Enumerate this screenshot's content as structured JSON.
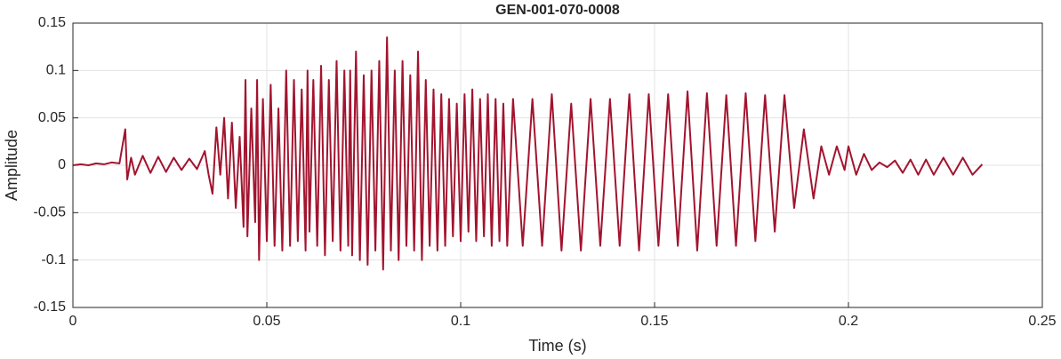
{
  "chart_data": {
    "type": "line",
    "title": "GEN-001-070-0008",
    "xlabel": "Time (s)",
    "ylabel": "Amplitude",
    "xlim": [
      0,
      0.25
    ],
    "xticks": [
      0,
      0.05,
      0.1,
      0.15,
      0.2,
      0.25
    ],
    "ylim": [
      -0.15,
      0.15
    ],
    "yticks": [
      -0.15,
      -0.1,
      -0.05,
      0,
      0.05,
      0.1,
      0.15
    ],
    "grid": true,
    "x": [
      0,
      0.002,
      0.004,
      0.006,
      0.008,
      0.01,
      0.012,
      0.0135,
      0.014,
      0.015,
      0.016,
      0.018,
      0.02,
      0.022,
      0.024,
      0.026,
      0.028,
      0.03,
      0.032,
      0.034,
      0.035,
      0.036,
      0.037,
      0.038,
      0.039,
      0.04,
      0.041,
      0.042,
      0.043,
      0.044,
      0.0445,
      0.045,
      0.046,
      0.047,
      0.0475,
      0.048,
      0.049,
      0.05,
      0.051,
      0.052,
      0.053,
      0.054,
      0.055,
      0.056,
      0.057,
      0.058,
      0.059,
      0.06,
      0.0605,
      0.061,
      0.062,
      0.063,
      0.064,
      0.065,
      0.066,
      0.067,
      0.068,
      0.069,
      0.07,
      0.071,
      0.0715,
      0.072,
      0.073,
      0.074,
      0.075,
      0.076,
      0.077,
      0.078,
      0.079,
      0.08,
      0.081,
      0.082,
      0.083,
      0.084,
      0.085,
      0.086,
      0.087,
      0.088,
      0.089,
      0.09,
      0.091,
      0.092,
      0.093,
      0.094,
      0.095,
      0.096,
      0.097,
      0.098,
      0.099,
      0.1,
      0.101,
      0.102,
      0.103,
      0.104,
      0.105,
      0.106,
      0.107,
      0.108,
      0.109,
      0.11,
      0.111,
      0.112,
      0.1135,
      0.116,
      0.1185,
      0.121,
      0.1235,
      0.126,
      0.1285,
      0.131,
      0.1335,
      0.136,
      0.1385,
      0.141,
      0.1435,
      0.146,
      0.1485,
      0.151,
      0.1535,
      0.156,
      0.1585,
      0.161,
      0.1635,
      0.166,
      0.1685,
      0.171,
      0.1735,
      0.176,
      0.1785,
      0.181,
      0.1835,
      0.186,
      0.1885,
      0.191,
      0.193,
      0.195,
      0.197,
      0.199,
      0.2,
      0.202,
      0.204,
      0.206,
      0.208,
      0.21,
      0.212,
      0.214,
      0.216,
      0.218,
      0.22,
      0.222,
      0.2245,
      0.227,
      0.2295,
      0.232,
      0.2345
    ],
    "series": [
      {
        "color": "#a2142f",
        "values": [
          0,
          0.001,
          0,
          0.002,
          0.001,
          0.003,
          0.002,
          0.038,
          -0.015,
          0.008,
          -0.01,
          0.01,
          -0.008,
          0.009,
          -0.007,
          0.008,
          -0.005,
          0.007,
          -0.004,
          0.015,
          -0.01,
          -0.03,
          0.04,
          -0.01,
          0.05,
          -0.035,
          0.045,
          -0.045,
          0.03,
          -0.065,
          0.09,
          -0.075,
          0.06,
          -0.06,
          0.09,
          -0.1,
          0.07,
          -0.08,
          0.085,
          -0.085,
          0.06,
          -0.09,
          0.1,
          -0.085,
          0.09,
          -0.08,
          0.08,
          -0.09,
          0.1,
          -0.07,
          0.09,
          -0.085,
          0.105,
          -0.095,
          0.09,
          -0.08,
          0.11,
          -0.09,
          0.1,
          -0.085,
          0.1,
          -0.095,
          0.12,
          -0.1,
          0.095,
          -0.105,
          0.1,
          -0.09,
          0.11,
          -0.11,
          0.135,
          -0.09,
          0.1,
          -0.1,
          0.11,
          -0.085,
          0.095,
          -0.09,
          0.12,
          -0.1,
          0.09,
          -0.085,
          0.08,
          -0.09,
          0.075,
          -0.085,
          0.07,
          -0.075,
          0.065,
          -0.08,
          0.075,
          -0.07,
          0.08,
          -0.08,
          0.07,
          -0.075,
          0.075,
          -0.085,
          0.07,
          -0.08,
          0.065,
          -0.085,
          0.07,
          -0.085,
          0.07,
          -0.085,
          0.075,
          -0.09,
          0.065,
          -0.09,
          0.07,
          -0.085,
          0.07,
          -0.085,
          0.075,
          -0.09,
          0.075,
          -0.085,
          0.075,
          -0.085,
          0.078,
          -0.09,
          0.076,
          -0.085,
          0.074,
          -0.085,
          0.076,
          -0.08,
          0.074,
          -0.07,
          0.074,
          -0.045,
          0.038,
          -0.035,
          0.02,
          -0.01,
          0.02,
          -0.005,
          0.02,
          -0.01,
          0.012,
          -0.005,
          0.003,
          -0.002,
          0.005,
          -0.008,
          0.006,
          -0.01,
          0.006,
          -0.01,
          0.008,
          -0.01,
          0.008,
          -0.01,
          0.001
        ]
      }
    ]
  }
}
